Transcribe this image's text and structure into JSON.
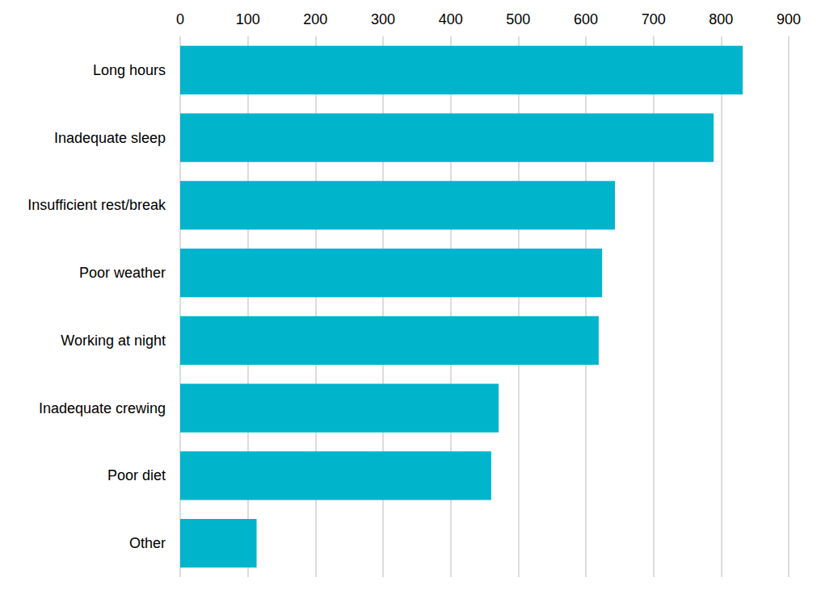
{
  "chart_data": {
    "type": "bar",
    "orientation": "horizontal",
    "categories": [
      "Long hours",
      "Inadequate sleep",
      "Insufficient rest/break",
      "Poor weather",
      "Working at night",
      "Inadequate crewing",
      "Poor diet",
      "Other"
    ],
    "values": [
      832,
      789,
      643,
      624,
      619,
      471,
      460,
      113
    ],
    "color": "#00b4cc",
    "xlim": [
      0,
      900
    ],
    "xticks": [
      0,
      100,
      200,
      300,
      400,
      500,
      600,
      700,
      800,
      900
    ],
    "grid": true
  }
}
